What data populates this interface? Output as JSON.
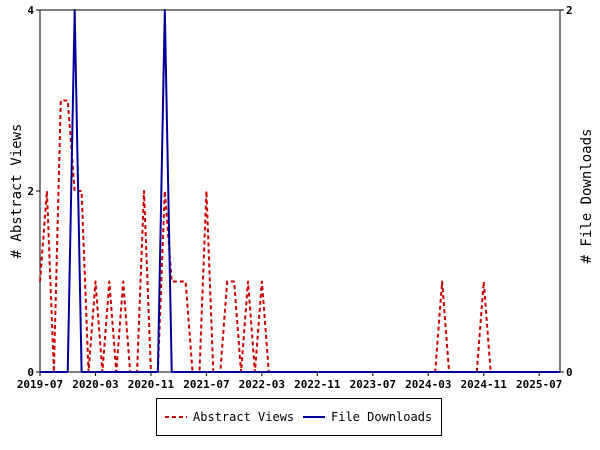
{
  "chart_data": {
    "type": "line",
    "title": "",
    "xlabel": "",
    "ylabel_left": "# Abstract Views",
    "ylabel_right": "# File Downloads",
    "ylim_left": [
      0,
      4
    ],
    "ylim_right": [
      0,
      2
    ],
    "yticks_left": [
      "0",
      "2",
      "4"
    ],
    "yticks_right": [
      "0",
      "2"
    ],
    "xlim": [
      "2019-07",
      "2025-10"
    ],
    "xticks": [
      "2019-07",
      "2020-03",
      "2020-11",
      "2021-07",
      "2022-03",
      "2022-11",
      "2023-07",
      "2024-03",
      "2024-11",
      "2025-07"
    ],
    "legend_position": "bottom-center",
    "grid": false,
    "series": [
      {
        "name": "Abstract Views",
        "axis": "left",
        "color": "#cc0000",
        "style": "dashed",
        "x": [
          "2019-07",
          "2019-08",
          "2019-09",
          "2019-10",
          "2019-11",
          "2019-12",
          "2020-01",
          "2020-02",
          "2020-03",
          "2020-04",
          "2020-05",
          "2020-06",
          "2020-07",
          "2020-08",
          "2020-09",
          "2020-10",
          "2020-11",
          "2020-12",
          "2021-01",
          "2021-02",
          "2021-03",
          "2021-04",
          "2021-05",
          "2021-06",
          "2021-07",
          "2021-08",
          "2021-09",
          "2021-10",
          "2021-11",
          "2021-12",
          "2022-01",
          "2022-02",
          "2022-03",
          "2022-04",
          "2024-04",
          "2024-05",
          "2024-06",
          "2024-10",
          "2024-11",
          "2024-12"
        ],
        "y": [
          1,
          2,
          0,
          3,
          3,
          2,
          2,
          0,
          1,
          0,
          1,
          0,
          1,
          0,
          0,
          2,
          0,
          0,
          2,
          1,
          1,
          1,
          0,
          0,
          2,
          0,
          0,
          1,
          1,
          0,
          1,
          0,
          1,
          0,
          0,
          1,
          0,
          0,
          1,
          0
        ]
      },
      {
        "name": "File Downloads",
        "axis": "right",
        "color": "#000099",
        "style": "solid",
        "x": [
          "2019-07",
          "2019-08",
          "2019-09",
          "2019-10",
          "2019-11",
          "2019-12",
          "2020-01",
          "2020-02",
          "2020-03",
          "2020-04",
          "2020-05",
          "2020-06",
          "2020-07",
          "2020-08",
          "2020-09",
          "2020-10",
          "2020-11",
          "2020-12",
          "2021-01",
          "2021-02",
          "2021-03",
          "2025-10"
        ],
        "y": [
          0,
          0,
          0,
          0,
          0,
          2,
          0,
          0,
          0,
          0,
          0,
          0,
          0,
          0,
          0,
          0,
          0,
          0,
          2,
          0,
          0,
          0
        ]
      }
    ]
  }
}
